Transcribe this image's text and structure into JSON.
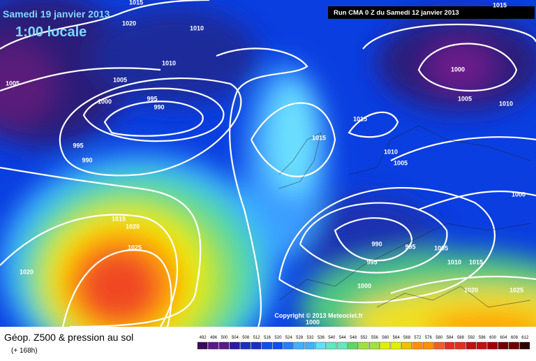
{
  "header": {
    "date": "Samedi 19 janvier 2013",
    "time": "1:00 locale",
    "run": "Run CMA 0 Z du Samedi 12 janvier 2013"
  },
  "map": {
    "copyright": "Copyright © 2013 Meteociel.fr",
    "isobar_labels": [
      1015,
      1020,
      1010,
      1010,
      1005,
      1005,
      1000,
      995,
      990,
      995,
      990,
      1015,
      1020,
      1025,
      1020,
      1015,
      1015,
      1010,
      1005,
      1000,
      1005,
      1010,
      1015,
      1000,
      990,
      995,
      1005,
      995,
      1010,
      1015,
      1000,
      1020,
      1025,
      1000
    ]
  },
  "footer": {
    "title": "Géop. Z500 & pression au sol",
    "lead": "(+ 168h)",
    "scale": [
      492,
      496,
      500,
      504,
      508,
      512,
      516,
      520,
      524,
      528,
      532,
      536,
      540,
      544,
      548,
      552,
      556,
      560,
      564,
      568,
      572,
      576,
      580,
      584,
      588,
      592,
      596,
      600,
      604,
      608,
      612
    ]
  }
}
